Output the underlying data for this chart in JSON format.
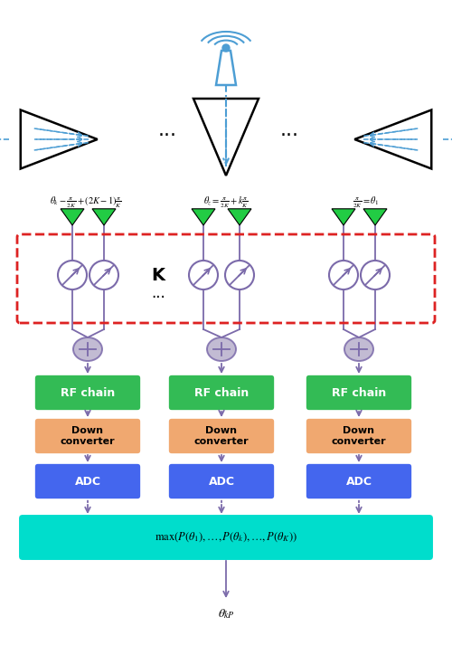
{
  "antenna_color": "#4d9ed4",
  "beam_color": "#000000",
  "green_tri_color": "#22cc44",
  "phase_color": "#7b6aaa",
  "combiner_color": "#b8b0cc",
  "rf_color": "#33bb55",
  "dc_color": "#f0a870",
  "adc_color": "#4466ee",
  "max_color": "#00ddcc",
  "arrow_color": "#7b6aaa",
  "red_dash_color": "#dd2222",
  "label_left": "$\\theta_k - \\frac{\\pi}{2K} + (2K-1)\\frac{\\pi}{K}$",
  "label_center": "$\\theta_z = \\frac{\\pi}{2K} + k\\frac{\\pi}{K}$",
  "label_right": "$\\frac{\\pi}{2K} = \\theta_1$",
  "max_label": "$\\mathrm{max}(P(\\theta_1),\\ldots,P(\\theta_k),\\ldots,P(\\theta_K))$",
  "output_label": "$\\theta_{kP}$",
  "K_label": "K",
  "dots_label": "..."
}
